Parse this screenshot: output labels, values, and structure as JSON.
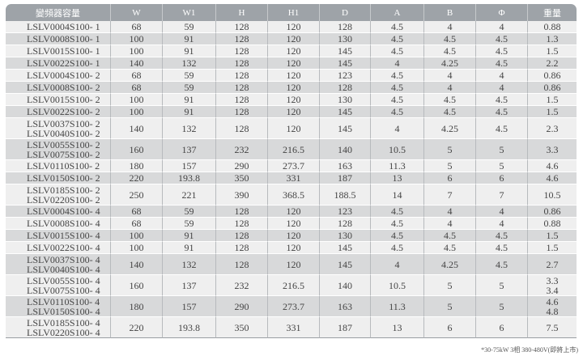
{
  "headers": [
    "變頻器容量",
    "W",
    "W1",
    "H",
    "H1",
    "D",
    "A",
    "B",
    "Φ",
    "重量"
  ],
  "rows": [
    {
      "model": [
        "LSLV0004S100- 1"
      ],
      "v": [
        "68",
        "59",
        "128",
        "120",
        "128",
        "4.5",
        "4",
        "4"
      ],
      "wt": [
        "0.88"
      ]
    },
    {
      "model": [
        "LSLV0008S100- 1"
      ],
      "v": [
        "100",
        "91",
        "128",
        "120",
        "130",
        "4.5",
        "4.5",
        "4.5"
      ],
      "wt": [
        "1.3"
      ]
    },
    {
      "model": [
        "LSLV0015S100- 1"
      ],
      "v": [
        "100",
        "91",
        "128",
        "120",
        "145",
        "4.5",
        "4.5",
        "4.5"
      ],
      "wt": [
        "1.5"
      ]
    },
    {
      "model": [
        "LSLV0022S100- 1"
      ],
      "v": [
        "140",
        "132",
        "128",
        "120",
        "145",
        "4",
        "4.25",
        "4.5"
      ],
      "wt": [
        "2.2"
      ]
    },
    {
      "model": [
        "LSLV0004S100- 2"
      ],
      "v": [
        "68",
        "59",
        "128",
        "120",
        "123",
        "4.5",
        "4",
        "4"
      ],
      "wt": [
        "0.86"
      ]
    },
    {
      "model": [
        "LSLV0008S100- 2"
      ],
      "v": [
        "68",
        "59",
        "128",
        "120",
        "128",
        "4.5",
        "4",
        "4"
      ],
      "wt": [
        "0.86"
      ]
    },
    {
      "model": [
        "LSLV0015S100- 2"
      ],
      "v": [
        "100",
        "91",
        "128",
        "120",
        "130",
        "4.5",
        "4.5",
        "4.5"
      ],
      "wt": [
        "1.5"
      ]
    },
    {
      "model": [
        "LSLV0022S100- 2"
      ],
      "v": [
        "100",
        "91",
        "128",
        "120",
        "145",
        "4.5",
        "4.5",
        "4.5"
      ],
      "wt": [
        "1.5"
      ]
    },
    {
      "model": [
        "LSLV0037S100- 2",
        "LSLV0040S100- 2"
      ],
      "v": [
        "140",
        "132",
        "128",
        "120",
        "145",
        "4",
        "4.25",
        "4.5"
      ],
      "wt": [
        "2.3"
      ]
    },
    {
      "model": [
        "LSLV0055S100- 2",
        "LSLV0075S100- 2"
      ],
      "v": [
        "160",
        "137",
        "232",
        "216.5",
        "140",
        "10.5",
        "5",
        "5"
      ],
      "wt": [
        "3.3"
      ]
    },
    {
      "model": [
        "LSLV0110S100- 2"
      ],
      "v": [
        "180",
        "157",
        "290",
        "273.7",
        "163",
        "11.3",
        "5",
        "5"
      ],
      "wt": [
        "4.6"
      ]
    },
    {
      "model": [
        "LSLV0150S100- 2"
      ],
      "v": [
        "220",
        "193.8",
        "350",
        "331",
        "187",
        "13",
        "6",
        "6"
      ],
      "wt": [
        "4.6"
      ]
    },
    {
      "model": [
        "LSLV0185S100- 2",
        "LSLV0220S100- 2"
      ],
      "v": [
        "250",
        "221",
        "390",
        "368.5",
        "188.5",
        "14",
        "7",
        "7"
      ],
      "wt": [
        "10.5"
      ]
    },
    {
      "model": [
        "LSLV0004S100- 4"
      ],
      "v": [
        "68",
        "59",
        "128",
        "120",
        "123",
        "4.5",
        "4",
        "4"
      ],
      "wt": [
        "0.86"
      ]
    },
    {
      "model": [
        "LSLV0008S100- 4"
      ],
      "v": [
        "68",
        "59",
        "128",
        "120",
        "128",
        "4.5",
        "4",
        "4"
      ],
      "wt": [
        "0.88"
      ]
    },
    {
      "model": [
        "LSLV0015S100- 4"
      ],
      "v": [
        "100",
        "91",
        "128",
        "120",
        "130",
        "4.5",
        "4.5",
        "4.5"
      ],
      "wt": [
        "1.5"
      ]
    },
    {
      "model": [
        "LSLV0022S100- 4"
      ],
      "v": [
        "100",
        "91",
        "128",
        "120",
        "145",
        "4.5",
        "4.5",
        "4.5"
      ],
      "wt": [
        "1.5"
      ]
    },
    {
      "model": [
        "LSLV0037S100- 4",
        "LSLV0040S100- 4"
      ],
      "v": [
        "140",
        "132",
        "128",
        "120",
        "145",
        "4",
        "4.25",
        "4.5"
      ],
      "wt": [
        "2.7"
      ]
    },
    {
      "model": [
        "LSLV0055S100- 4",
        "LSLV0075S100- 4"
      ],
      "v": [
        "160",
        "137",
        "232",
        "216.5",
        "140",
        "10.5",
        "5",
        "5"
      ],
      "wt": [
        "3.3",
        "3.4"
      ]
    },
    {
      "model": [
        "LSLV0110S100- 4",
        "LSLV0150S100- 4"
      ],
      "v": [
        "180",
        "157",
        "290",
        "273.7",
        "163",
        "11.3",
        "5",
        "5"
      ],
      "wt": [
        "4.6",
        "4.8"
      ]
    },
    {
      "model": [
        "LSLV0185S100- 4",
        "LSLV0220S100- 4"
      ],
      "v": [
        "220",
        "193.8",
        "350",
        "331",
        "187",
        "13",
        "6",
        "6"
      ],
      "wt": [
        "7.5"
      ]
    }
  ],
  "footnote": "*30-75kW 3相 380-480V(即將上市)"
}
